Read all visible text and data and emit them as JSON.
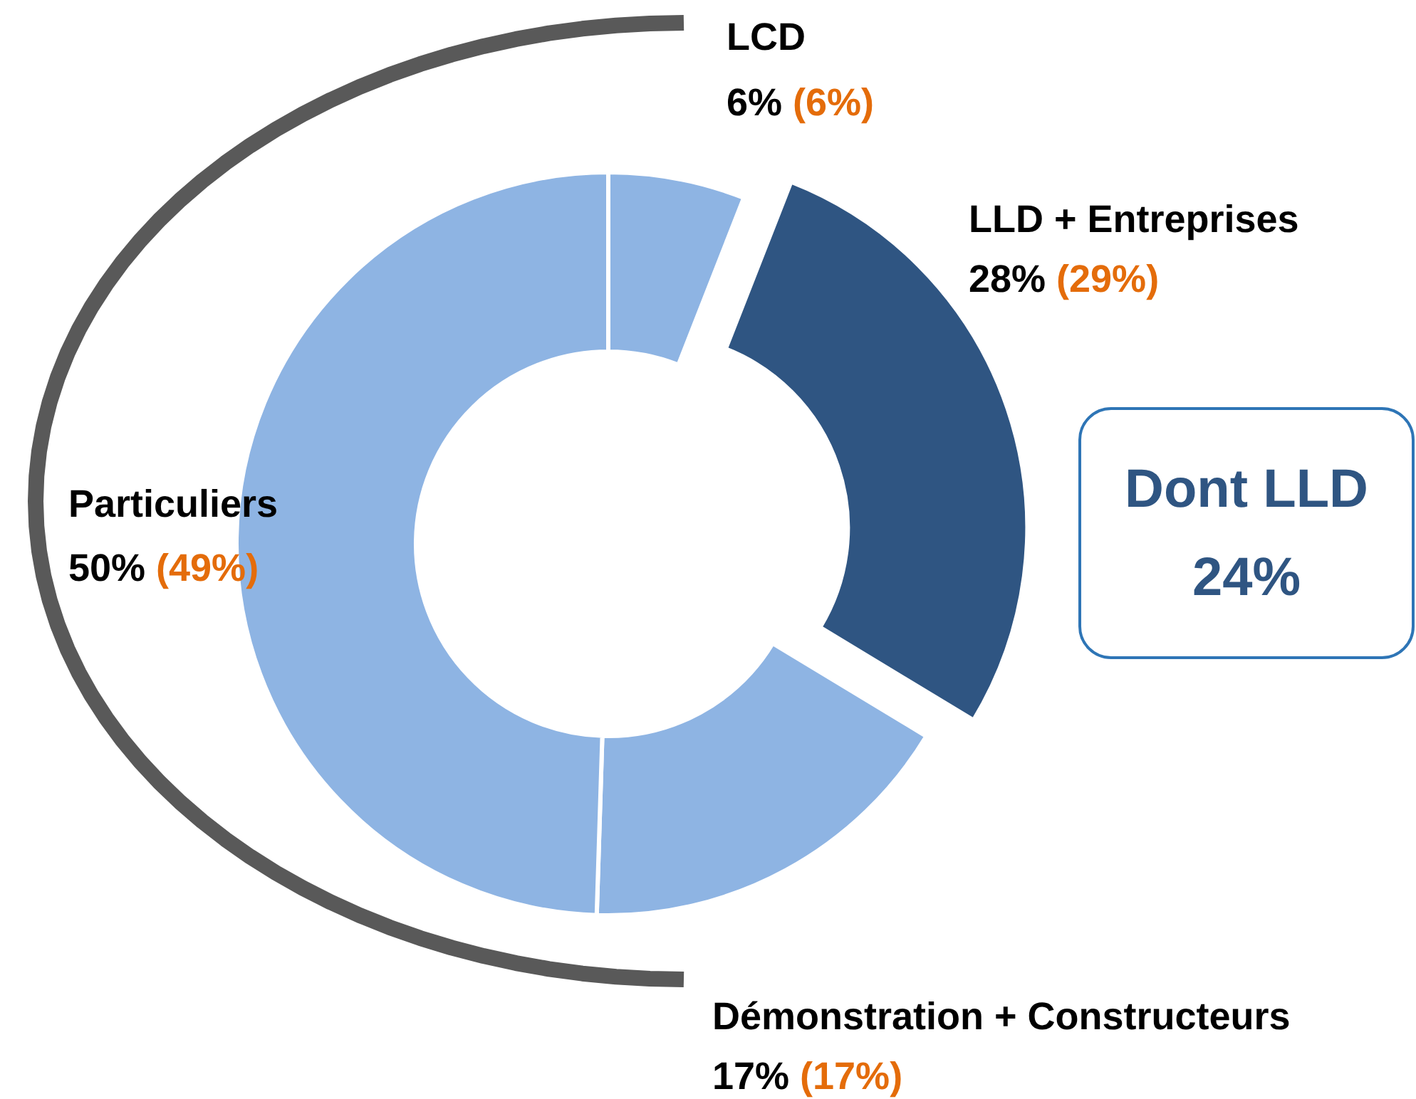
{
  "chart_data": {
    "type": "donut",
    "categories": [
      "LCD",
      "LLD + Entreprises",
      "Démonstration + Constructeurs",
      "Particuliers"
    ],
    "values": [
      6,
      28,
      17,
      50
    ],
    "colors": [
      "#8eb4e3",
      "#2f5582",
      "#8eb4e3",
      "#8eb4e3"
    ],
    "value_labels": [
      "6%",
      "28%",
      "17%",
      "50%"
    ],
    "annotations": [
      "(6%)",
      "(29%)",
      "(17%)",
      "(49%)",
      "Dont LLD",
      "24%"
    ]
  }
}
